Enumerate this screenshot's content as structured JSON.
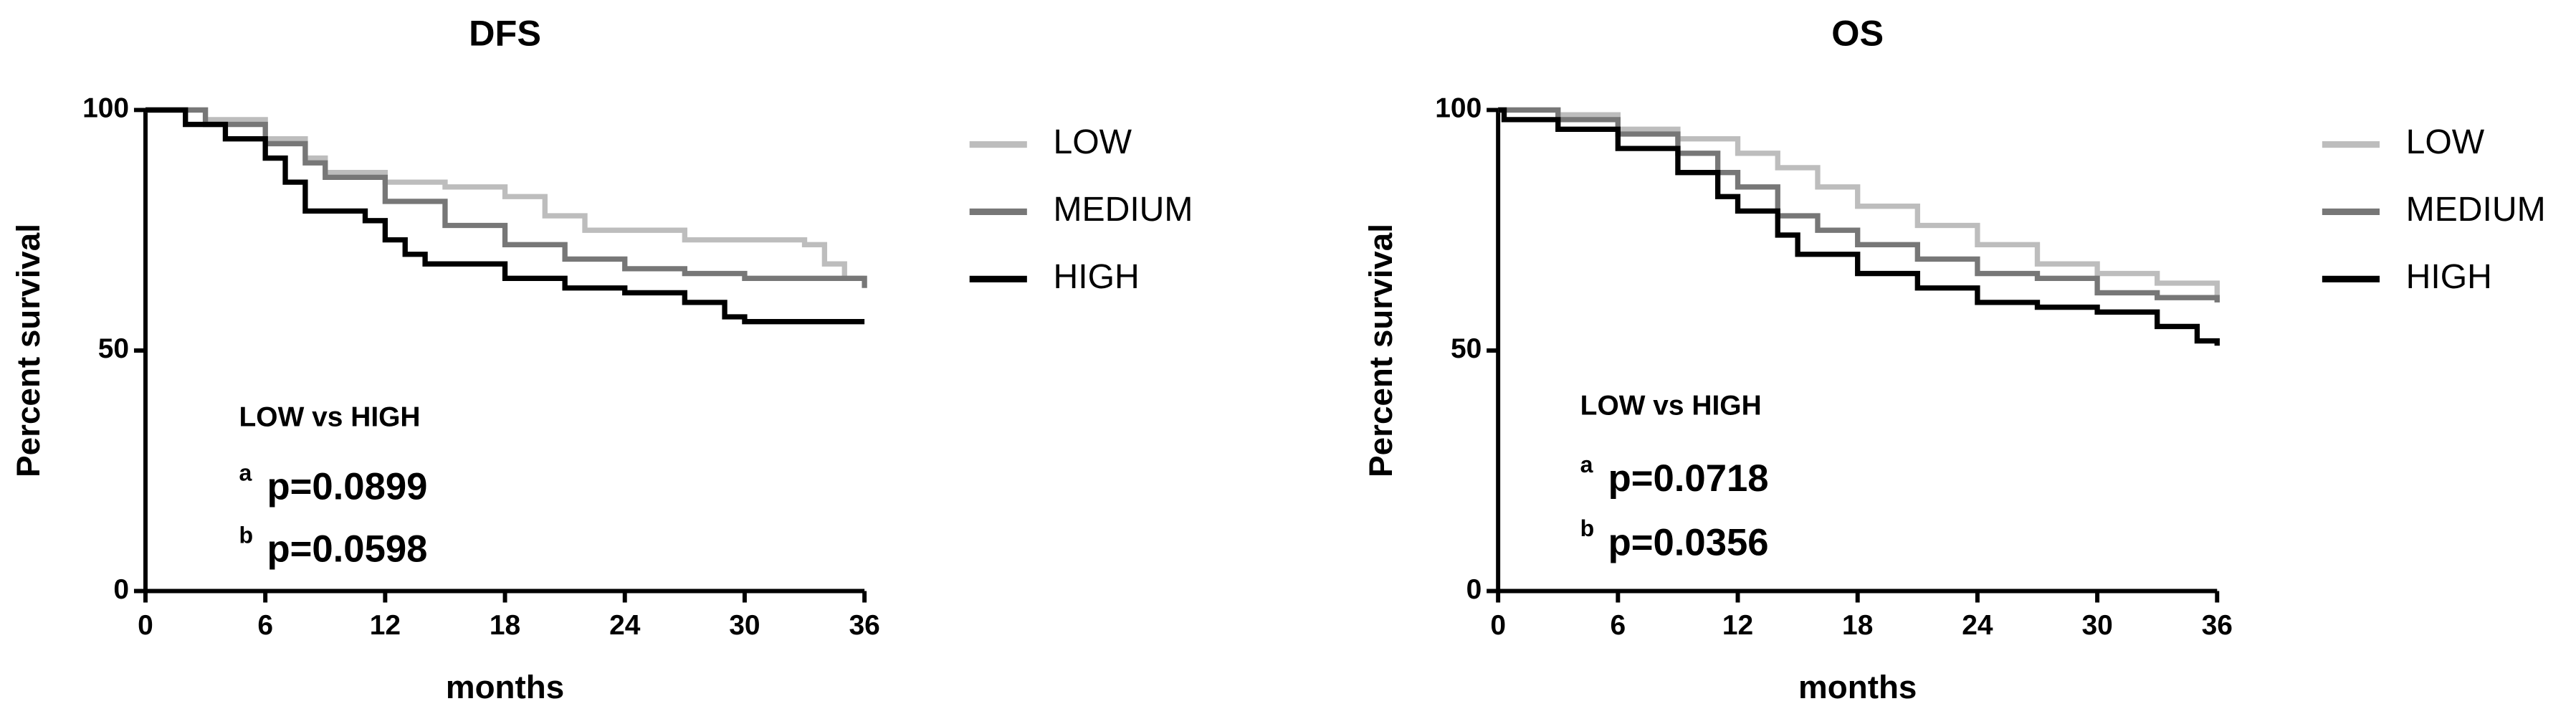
{
  "chart_data": [
    {
      "type": "step",
      "title": "DFS",
      "x_label": "months",
      "y_label": "Percent survival",
      "xlim": [
        0,
        36
      ],
      "ylim": [
        0,
        100
      ],
      "xticks": [
        0,
        6,
        12,
        18,
        24,
        30,
        36
      ],
      "yticks": [
        0,
        50,
        100
      ],
      "annotations": [
        "LOW vs HIGH",
        "a",
        "p=0.0899",
        "b",
        "p=0.0598"
      ],
      "series": [
        {
          "name": "LOW",
          "color": "#bdbdbd",
          "x": [
            0,
            3,
            6,
            8,
            9,
            12,
            15,
            18,
            20,
            22,
            24,
            27,
            30,
            33,
            34,
            35,
            36
          ],
          "values": [
            100,
            98,
            94,
            90,
            87,
            85,
            84,
            82,
            78,
            75,
            75,
            73,
            73,
            72,
            68,
            65,
            65
          ]
        },
        {
          "name": "MEDIUM",
          "color": "#777777",
          "x": [
            0,
            3,
            6,
            8,
            9,
            12,
            15,
            18,
            21,
            24,
            27,
            30,
            33,
            36
          ],
          "values": [
            100,
            97,
            93,
            89,
            86,
            81,
            76,
            72,
            69,
            67,
            66,
            65,
            65,
            63
          ]
        },
        {
          "name": "HIGH",
          "color": "#000000",
          "x": [
            0,
            2,
            4,
            6,
            7,
            8,
            11,
            12,
            13,
            14,
            18,
            21,
            24,
            27,
            29,
            30,
            36
          ],
          "values": [
            100,
            97,
            94,
            90,
            85,
            79,
            77,
            73,
            70,
            68,
            65,
            63,
            62,
            60,
            57,
            56,
            56
          ]
        }
      ]
    },
    {
      "type": "step",
      "title": "OS",
      "x_label": "months",
      "y_label": "Percent survival",
      "xlim": [
        0,
        36
      ],
      "ylim": [
        0,
        100
      ],
      "xticks": [
        0,
        6,
        12,
        18,
        24,
        30,
        36
      ],
      "yticks": [
        0,
        50,
        100
      ],
      "annotations": [
        "LOW vs HIGH",
        "a",
        "p=0.0718",
        "b",
        "p=0.0356"
      ],
      "series": [
        {
          "name": "LOW",
          "color": "#bdbdbd",
          "x": [
            0,
            3,
            6,
            9,
            12,
            14,
            16,
            18,
            21,
            24,
            27,
            30,
            33,
            36
          ],
          "values": [
            100,
            99,
            96,
            94,
            91,
            88,
            84,
            80,
            76,
            72,
            68,
            66,
            64,
            60
          ]
        },
        {
          "name": "MEDIUM",
          "color": "#777777",
          "x": [
            0,
            3,
            6,
            9,
            11,
            12,
            14,
            16,
            18,
            21,
            24,
            27,
            30,
            33,
            36
          ],
          "values": [
            100,
            98,
            95,
            91,
            87,
            84,
            78,
            75,
            72,
            69,
            66,
            65,
            62,
            61,
            60
          ]
        },
        {
          "name": "HIGH",
          "color": "#000000",
          "x": [
            0,
            0.3,
            3,
            6,
            9,
            11,
            12,
            14,
            15,
            18,
            21,
            24,
            27,
            30,
            33,
            35,
            36
          ],
          "values": [
            100,
            98,
            96,
            92,
            87,
            82,
            79,
            74,
            70,
            66,
            63,
            60,
            59,
            58,
            55,
            52,
            51
          ]
        }
      ]
    }
  ]
}
